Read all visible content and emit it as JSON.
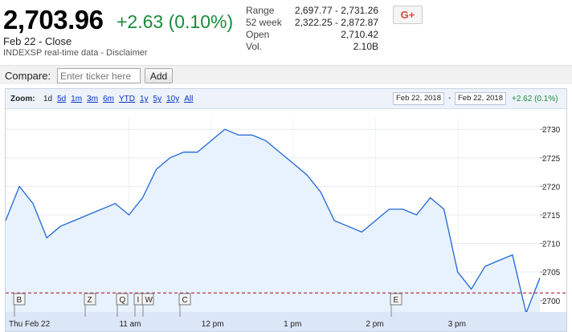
{
  "quote": {
    "price": "2,703.96",
    "change": "+2.63 (0.10%)",
    "close_label": "Feb 22 - Close",
    "disclaimer": "INDEXSP real-time data - Disclaimer"
  },
  "stats": [
    {
      "label": "Range",
      "value": "2,697.77 - 2,731.26"
    },
    {
      "label": "52 week",
      "value": "2,322.25 - 2,872.87"
    },
    {
      "label": "Open",
      "value": "2,710.42"
    },
    {
      "label": "Vol.",
      "value": "2.10B"
    }
  ],
  "share": {
    "label": "G+"
  },
  "compare": {
    "label": "Compare:",
    "placeholder": "Enter ticker here",
    "button": "Add"
  },
  "zoom": {
    "label": "Zoom:",
    "options": [
      "1d",
      "5d",
      "1m",
      "3m",
      "6m",
      "YTD",
      "1y",
      "5y",
      "10y",
      "All"
    ],
    "active": "1d",
    "from_date": "Feb 22, 2018",
    "to_date": "Feb 22, 2018",
    "separator": "-",
    "range_change": "+2.62 (0.1%)"
  },
  "colors": {
    "line": "#1f66d6",
    "fill": "#e8f2fd",
    "prev_close": "#b0203a",
    "positive": "#1a8c3a"
  },
  "chart_data": {
    "type": "area",
    "x": [
      "9:30",
      "9:40",
      "9:50",
      "10:00",
      "10:10",
      "10:20",
      "10:30",
      "10:40",
      "10:50",
      "11:00",
      "11:10",
      "11:20",
      "11:30",
      "11:40",
      "11:50",
      "12:00",
      "12:10",
      "12:20",
      "12:30",
      "12:40",
      "12:50",
      "13:00",
      "13:10",
      "13:20",
      "13:30",
      "13:40",
      "13:50",
      "14:00",
      "14:10",
      "14:20",
      "14:30",
      "14:40",
      "14:50",
      "15:00",
      "15:10",
      "15:20",
      "15:30",
      "15:40",
      "15:50",
      "16:00"
    ],
    "y": [
      2714,
      2720,
      2717,
      2711,
      2713,
      2714,
      2715,
      2716,
      2717,
      2715,
      2718,
      2723,
      2725,
      2726,
      2726,
      2728,
      2730,
      2729,
      2729,
      2728,
      2726,
      2724,
      2722,
      2719,
      2714,
      2713,
      2712,
      2714,
      2716,
      2716,
      2715,
      2718,
      2716,
      2705,
      2702,
      2706,
      2707,
      2708,
      2697.8,
      2703.96
    ],
    "prev_close": 2701.33,
    "xticks": [
      "Thu Feb 22",
      "11 am",
      "12 pm",
      "1 pm",
      "2 pm",
      "3 pm"
    ],
    "yticks": [
      2700,
      2705,
      2710,
      2715,
      2720,
      2725,
      2730
    ],
    "ylim": [
      2698,
      2732
    ],
    "grid": true,
    "annotations": [
      "B",
      "Z",
      "Q",
      "I",
      "W",
      "C",
      "E"
    ]
  }
}
